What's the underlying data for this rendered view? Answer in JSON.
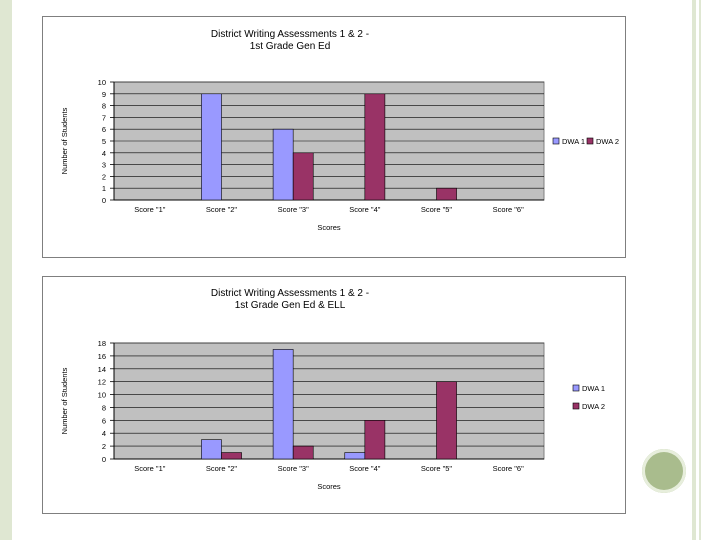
{
  "chart_data": [
    {
      "type": "bar",
      "title": "District Writing Assessments 1 & 2 -",
      "subtitle": "1st Grade Gen Ed",
      "xlabel": "Scores",
      "ylabel": "Number of Students",
      "categories": [
        "Score \"1\"",
        "Score \"2\"",
        "Score \"3\"",
        "Score \"4\"",
        "Score \"5\"",
        "Score \"6\""
      ],
      "series": [
        {
          "name": "DWA 1",
          "values": [
            0,
            9,
            6,
            0,
            0,
            0
          ],
          "color": "#9999ff"
        },
        {
          "name": "DWA 2",
          "values": [
            0,
            0,
            4,
            9,
            1,
            0
          ],
          "color": "#993366"
        }
      ],
      "ylim": [
        0,
        10
      ],
      "yticks": [
        0,
        1,
        2,
        3,
        4,
        5,
        6,
        7,
        8,
        9,
        10
      ],
      "grid": true,
      "legend": "right",
      "plot_background": "#c0c0c0"
    },
    {
      "type": "bar",
      "title": "District Writing Assessments 1 & 2 -",
      "subtitle": "1st Grade Gen Ed & ELL",
      "xlabel": "Scores",
      "ylabel": "Number of Students",
      "categories": [
        "Score \"1\"",
        "Score \"2\"",
        "Score \"3\"",
        "Score \"4\"",
        "Score \"5\"",
        "Score \"6\""
      ],
      "series": [
        {
          "name": "DWA 1",
          "values": [
            0,
            3,
            17,
            1,
            0,
            0
          ],
          "color": "#9999ff"
        },
        {
          "name": "DWA 2",
          "values": [
            0,
            1,
            2,
            6,
            12,
            0
          ],
          "color": "#993366"
        }
      ],
      "ylim": [
        0,
        18
      ],
      "yticks": [
        0,
        2,
        4,
        6,
        8,
        10,
        12,
        14,
        16,
        18
      ],
      "grid": true,
      "legend": "right",
      "plot_background": "#c0c0c0"
    }
  ]
}
